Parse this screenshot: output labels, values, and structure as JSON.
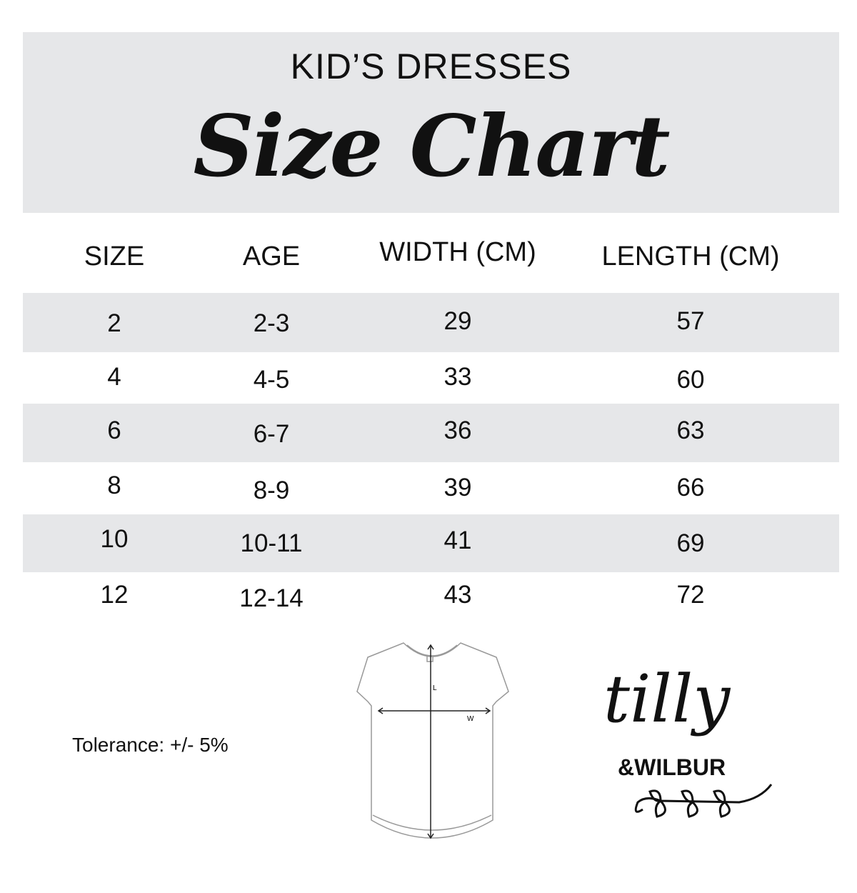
{
  "header": {
    "subtitle": "KID’S DRESSES",
    "title": "Size Chart"
  },
  "table": {
    "columns": [
      "SIZE",
      "AGE",
      "WIDTH (CM)",
      "LENGTH (CM)"
    ],
    "rows": [
      [
        "2",
        "2-3",
        "29",
        "57"
      ],
      [
        "4",
        "4-5",
        "33",
        "60"
      ],
      [
        "6",
        "6-7",
        "36",
        "63"
      ],
      [
        "8",
        "8-9",
        "39",
        "66"
      ],
      [
        "10",
        "10-11",
        "41",
        "69"
      ],
      [
        "12",
        "12-14",
        "43",
        "72"
      ]
    ]
  },
  "diagram": {
    "length_label": "L",
    "width_label": "W"
  },
  "tolerance": "Tolerance: +/- 5%",
  "logo": {
    "text": "tilly & WILBUR"
  },
  "colors": {
    "band": "#e6e7e9",
    "text": "#111111"
  }
}
